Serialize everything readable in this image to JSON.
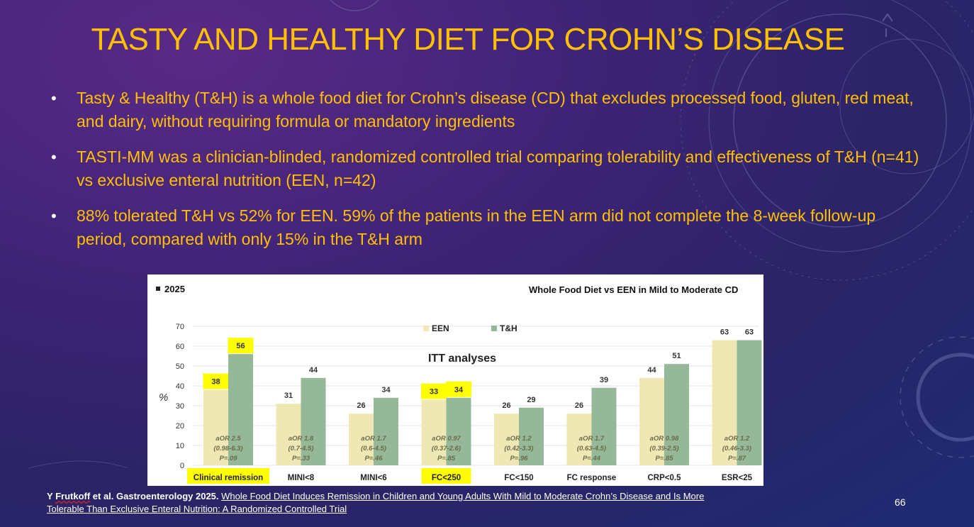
{
  "slide": {
    "title": "TASTY AND HEALTHY DIET FOR CROHN’S DISEASE",
    "bullets": [
      "Tasty & Healthy (T&H) is a whole food diet for Crohn’s disease (CD) that excludes processed food, gluten, red meat, and dairy, without requiring formula or mandatory ingredients",
      "TASTI-MM was a clinician-blinded, randomized controlled trial comparing tolerability and effectiveness of T&H (n=41) vs exclusive enteral nutrition (EEN, n=42)",
      "88% tolerated T&H vs 52% for EEN. 59% of the patients in the EEN arm did not complete the 8-week follow-up period, compared with only 15% in the T&H arm"
    ],
    "bullet_glyph": "•",
    "reference": {
      "author_first": "Y ",
      "author_last": "Frutkoff",
      "author_rest": " et al. Gastroenterology 2025.",
      "article_title": "Whole Food Diet Induces Remission in Children and Young Adults With Mild to Moderate Crohn’s Disease and Is More Tolerable Than Exclusive Enteral Nutrition: A Randomized Controlled Trial"
    },
    "page_number": "66"
  },
  "chart_data": {
    "type": "bar",
    "year_label": "2025",
    "title": "Whole Food Diet vs EEN in Mild to Moderate CD",
    "subtitle": "ITT analyses",
    "ylabel": "%",
    "xlabel": "",
    "ylim": [
      0,
      70
    ],
    "yticks": [
      0,
      10,
      20,
      30,
      40,
      50,
      60,
      70
    ],
    "categories": [
      "Clinical remission",
      "MINI<8",
      "MINI<6",
      "FC<250",
      "FC<150",
      "FC response",
      "CRP<0.5",
      "ESR<25"
    ],
    "series": [
      {
        "name": "EEN",
        "color": "#efe8b4",
        "values": [
          38,
          31,
          26,
          33,
          26,
          26,
          44,
          63
        ]
      },
      {
        "name": "T&H",
        "color": "#94b898",
        "values": [
          56,
          44,
          34,
          34,
          29,
          39,
          51,
          63
        ]
      }
    ],
    "stats": [
      {
        "aor": "aOR 2.5",
        "ci": "(0.98-6.3)",
        "p": "P=.09"
      },
      {
        "aor": "aOR 1.8",
        "ci": "(0.7-4.5)",
        "p": "P=.33"
      },
      {
        "aor": "aOR 1.7",
        "ci": "(0.6-4.5)",
        "p": "P=.46"
      },
      {
        "aor": "aOR 0.97",
        "ci": "(0.37-2.6)",
        "p": "P=.85"
      },
      {
        "aor": "aOR 1.2",
        "ci": "(0.42-3.3)",
        "p": "P=.96"
      },
      {
        "aor": "aOR 1.7",
        "ci": "(0.63-4.5)",
        "p": "P=.44"
      },
      {
        "aor": "aOR 0.98",
        "ci": "(0.39-2.5)",
        "p": "P=.85"
      },
      {
        "aor": "aOR 1.2",
        "ci": "(0.46-3.3)",
        "p": "P=.87"
      }
    ],
    "highlighted_categories": [
      "Clinical remission",
      "FC<250"
    ],
    "highlighted_values": [
      {
        "category": "Clinical remission",
        "series": "EEN"
      },
      {
        "category": "Clinical remission",
        "series": "T&H"
      },
      {
        "category": "FC<250",
        "series": "EEN"
      },
      {
        "category": "FC<250",
        "series": "T&H"
      }
    ],
    "highlight_color": "#ffff00",
    "grid": true,
    "legend": "top-center"
  }
}
